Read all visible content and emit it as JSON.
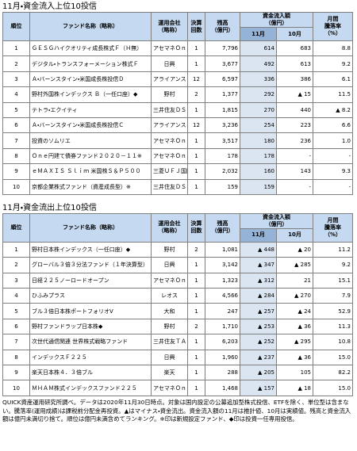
{
  "tables": [
    {
      "title": "11月・資金流入上位10投信",
      "headers": {
        "rank": "順位",
        "fund": "ファンド名称（略称）",
        "company": "運用会社\n（略称）",
        "settlement": "決算\n回数",
        "balance": "残高\n（億円）",
        "flow": "資金流入額\n（億円）",
        "nov": "11月",
        "oct": "10月",
        "return": "月間\n騰落率\n（%）"
      },
      "rows": [
        [
          "1",
          "ＧＥＳＧハイクオリティ成長株式Ｆ（Ｈ無）",
          "アセマネＯｎｅ",
          "1",
          "7,796",
          "614",
          "683",
          "8.8"
        ],
        [
          "2",
          "デジタル・トランスフォーメーション株式Ｆ",
          "日興",
          "1",
          "3,677",
          "492",
          "613",
          "9.2"
        ],
        [
          "3",
          "Ａ・バーンスタイン・米国成長株投信Ｄ",
          "アライアンス",
          "12",
          "6,597",
          "336",
          "386",
          "6.1"
        ],
        [
          "4",
          "野村外国株インデックス Ｂ（一任口座）◆",
          "野村",
          "2",
          "1,377",
          "292",
          "▲ 15",
          "11.5"
        ],
        [
          "5",
          "テトラ・エクイティ",
          "三井住友ＤＳ",
          "1",
          "1,815",
          "270",
          "440",
          "▲ 8.2"
        ],
        [
          "6",
          "Ａ・バーンスタイン・米国成長株投信Ｃ",
          "アライアンス",
          "12",
          "3,236",
          "254",
          "223",
          "6.6"
        ],
        [
          "7",
          "投資のソムリエ",
          "アセマネＯｎｅ",
          "1",
          "3,517",
          "180",
          "236",
          "1.0"
        ],
        [
          "8",
          "Ｏｎｅ円建て債券ファンド２０２０－１１※",
          "アセマネＯｎｅ",
          "1",
          "178",
          "178",
          "-",
          "-"
        ],
        [
          "9",
          "ｅＭＡＸＩＳ Ｓｌｉｍ 米国株Ｓ＆Ｐ５００",
          "三菱ＵＦＪ国際",
          "1",
          "2,032",
          "160",
          "143",
          "9.3"
        ],
        [
          "10",
          "京都企業株式ファンド（資産成長型）※",
          "三井住友ＤＳ",
          "1",
          "159",
          "159",
          "-",
          "-"
        ]
      ]
    },
    {
      "title": "11月・資金流出上位10投信",
      "headers": {
        "rank": "順位",
        "fund": "ファンド名称（略称）",
        "company": "運用会社\n（略称）",
        "settlement": "決算\n回数",
        "balance": "残高\n（億円）",
        "flow": "資金流入額\n（億円）",
        "nov": "11月",
        "oct": "10月",
        "return": "月間\n騰落率\n（%）"
      },
      "rows": [
        [
          "1",
          "野村日本株インデックス（一任口座）◆",
          "野村",
          "2",
          "1,081",
          "▲ 448",
          "▲ 20",
          "11.2"
        ],
        [
          "2",
          "グローバル３倍３分法ファンド（１年決算型）",
          "日興",
          "1",
          "3,142",
          "▲ 347",
          "▲ 285",
          "9.2"
        ],
        [
          "3",
          "日経２２５ノーロードオープン",
          "アセマネＯｎｅ",
          "1",
          "1,323",
          "▲ 312",
          "21",
          "15.1"
        ],
        [
          "4",
          "ひふみプラス",
          "レオス",
          "1",
          "4,566",
          "▲ 284",
          "▲ 270",
          "7.9"
        ],
        [
          "5",
          "ブル３倍日本株ポートフォリオⅤ",
          "大和",
          "1",
          "247",
          "▲ 257",
          "▲ 24",
          "52.9"
        ],
        [
          "6",
          "野村ファンドラップ日本株◆",
          "野村",
          "2",
          "1,710",
          "▲ 253",
          "▲ 36",
          "11.3"
        ],
        [
          "7",
          "次世代通信関連 世界株式戦略ファンド",
          "三井住友ＴＡＭ",
          "1",
          "6,203",
          "▲ 252",
          "▲ 295",
          "10.8"
        ],
        [
          "8",
          "インデックスＦ２２５",
          "日興",
          "1",
          "1,960",
          "▲ 237",
          "▲ 36",
          "15.0"
        ],
        [
          "9",
          "楽天日本株４．３倍ブル",
          "楽天",
          "1",
          "288",
          "▲ 205",
          "105",
          "82.2"
        ],
        [
          "10",
          "ＭＨＡＭ株式インデックスファンド２２５",
          "アセマネＯｎｅ",
          "1",
          "1,468",
          "▲ 157",
          "▲ 18",
          "15.0"
        ]
      ]
    }
  ],
  "note": "QUICK資産運用研究所調べ。データは2020年11月30日時点。対象は国内設定の公募追加型株式投信、ETFを除く、単位型は含まない。騰落率(運用成績)は課税前分配金再投資。▲はマイナス・資金流出。資金流入額の11月は推計値、10月は実績値。残高と資金流入額は億円未満切り捨て。順位は億円未満含めてランキング。※印は新規設定ファンド、◆印は投資一任専用投信。"
}
